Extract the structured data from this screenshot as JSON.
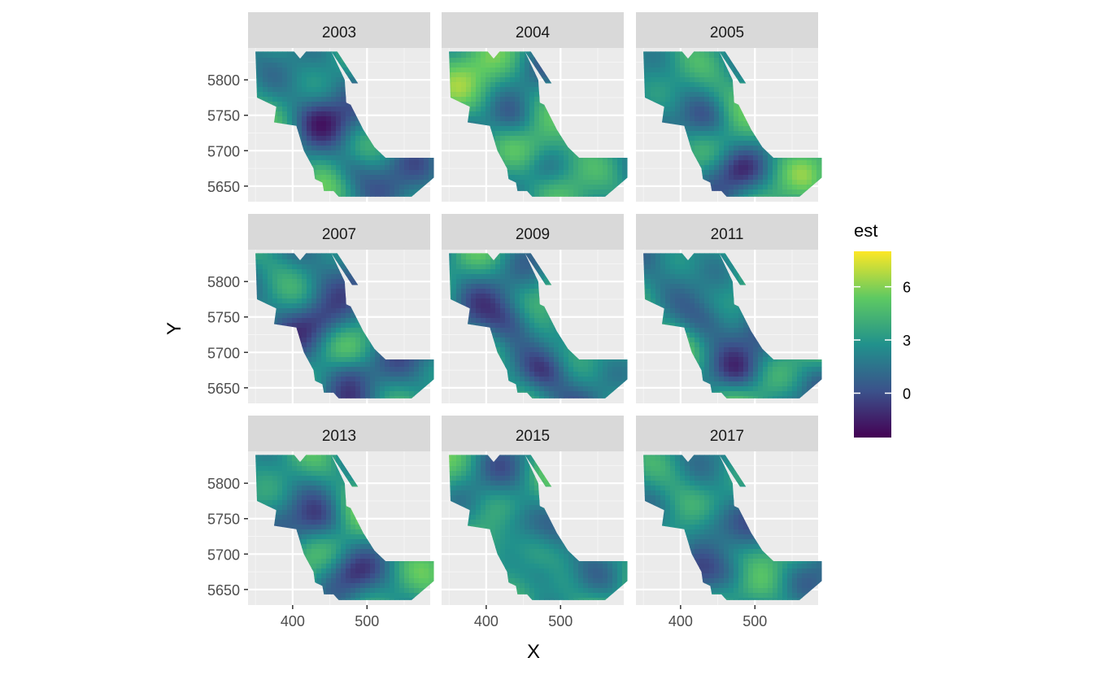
{
  "chart_data": {
    "type": "heatmap",
    "xlabel": "X",
    "ylabel": "Y",
    "panels": [
      {
        "label": "2003",
        "seed": 11,
        "mean": 2.4
      },
      {
        "label": "2004",
        "seed": 23,
        "mean": 3.6
      },
      {
        "label": "2005",
        "seed": 37,
        "mean": 3.0
      },
      {
        "label": "2007",
        "seed": 41,
        "mean": 2.0
      },
      {
        "label": "2009",
        "seed": 53,
        "mean": 2.5
      },
      {
        "label": "2011",
        "seed": 67,
        "mean": 2.6
      },
      {
        "label": "2013",
        "seed": 71,
        "mean": 3.0
      },
      {
        "label": "2015",
        "seed": 83,
        "mean": 3.2
      },
      {
        "label": "2017",
        "seed": 97,
        "mean": 2.6
      }
    ],
    "x_ticks": [
      400,
      500
    ],
    "x_tick_labels": [
      "400",
      "500"
    ],
    "y_ticks": [
      5800,
      5750,
      5700,
      5650
    ],
    "y_tick_labels": [
      "5800",
      "5750",
      "5700",
      "5650"
    ],
    "xlim": [
      340,
      585
    ],
    "ylim": [
      5628,
      5845
    ],
    "region_polygon": [
      [
        350,
        5840
      ],
      [
        402,
        5840
      ],
      [
        410,
        5830
      ],
      [
        418,
        5840
      ],
      [
        452,
        5840
      ],
      [
        470,
        5800
      ],
      [
        472,
        5768
      ],
      [
        478,
        5765
      ],
      [
        495,
        5730
      ],
      [
        510,
        5705
      ],
      [
        525,
        5690
      ],
      [
        590,
        5690
      ],
      [
        590,
        5662
      ],
      [
        560,
        5635
      ],
      [
        462,
        5635
      ],
      [
        455,
        5643
      ],
      [
        442,
        5643
      ],
      [
        440,
        5655
      ],
      [
        430,
        5660
      ],
      [
        428,
        5675
      ],
      [
        415,
        5700
      ],
      [
        405,
        5735
      ],
      [
        375,
        5740
      ],
      [
        378,
        5762
      ],
      [
        352,
        5775
      ]
    ],
    "region_strip": [
      [
        452,
        5840
      ],
      [
        460,
        5840
      ],
      [
        488,
        5795
      ],
      [
        480,
        5795
      ]
    ],
    "legend": {
      "title": "est",
      "min": -2.5,
      "max": 8,
      "breaks": [
        6,
        3,
        0
      ],
      "break_labels": [
        "6",
        "3",
        "0"
      ],
      "colormap": "viridis"
    }
  }
}
